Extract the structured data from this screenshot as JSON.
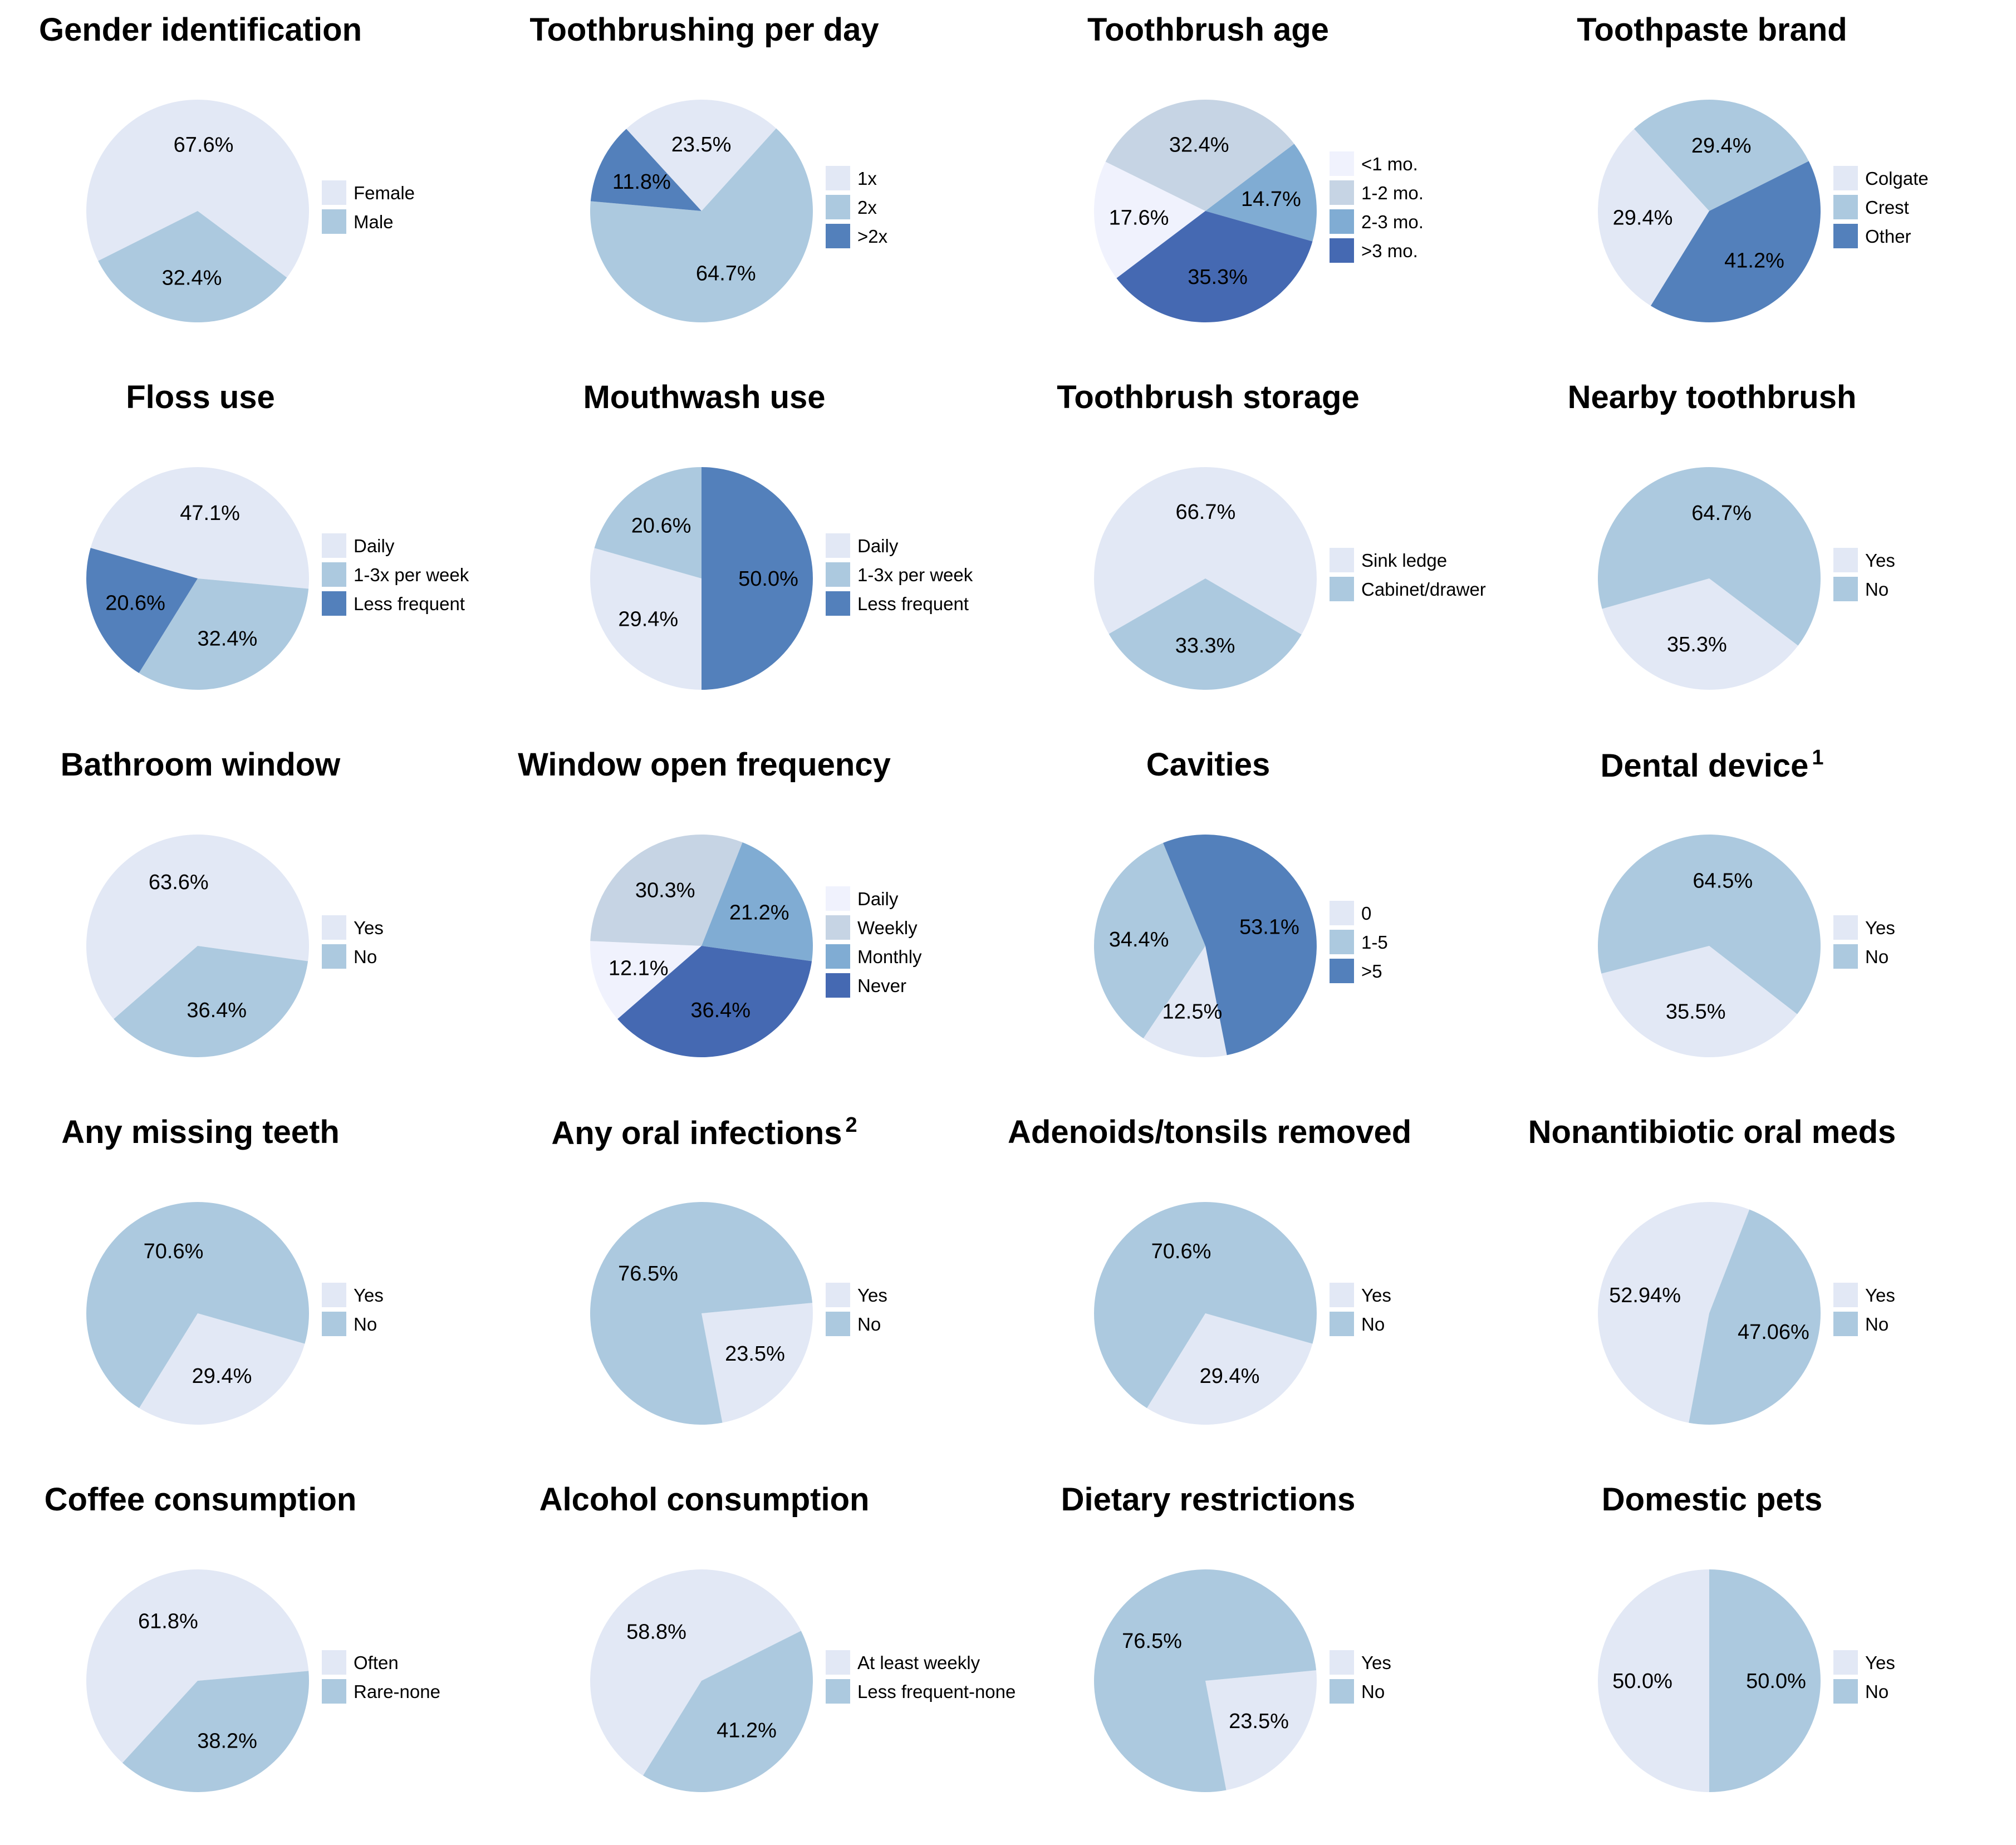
{
  "chart_data": [
    {
      "type": "pie",
      "title": "Gender identification",
      "sup": "",
      "categories": [
        "Female",
        "Male"
      ],
      "values": [
        67.6,
        32.4
      ],
      "labels": [
        "67.6%",
        "32.4%"
      ],
      "colors": [
        "#e2e8f5",
        "#acc9df"
      ]
    },
    {
      "type": "pie",
      "title": "Toothbrushing per day",
      "sup": "",
      "categories": [
        "1x",
        "2x",
        ">2x"
      ],
      "values": [
        23.5,
        64.7,
        11.8
      ],
      "labels": [
        "23.5%",
        "64.7%",
        "11.8%"
      ],
      "colors": [
        "#e2e8f5",
        "#acc9df",
        "#5380bb"
      ]
    },
    {
      "type": "pie",
      "title": "Toothbrush age",
      "sup": "",
      "categories": [
        "<1 mo.",
        "1-2 mo.",
        "2-3 mo.",
        ">3 mo."
      ],
      "values": [
        17.6,
        32.4,
        14.7,
        35.3
      ],
      "labels": [
        "17.6%",
        "32.4%",
        "14.7%",
        "35.3%"
      ],
      "colors": [
        "#f0f2fd",
        "#c6d4e4",
        "#80acd3",
        "#4569b2"
      ]
    },
    {
      "type": "pie",
      "title": "Toothpaste brand",
      "sup": "",
      "categories": [
        "Colgate",
        "Crest",
        "Other"
      ],
      "values": [
        29.4,
        29.4,
        41.2
      ],
      "labels": [
        "29.4%",
        "29.4%",
        "41.2%"
      ],
      "colors": [
        "#e2e8f5",
        "#acc9df",
        "#5380bb"
      ]
    },
    {
      "type": "pie",
      "title": "Floss use",
      "sup": "",
      "categories": [
        "Daily",
        "1-3x per week",
        "Less frequent"
      ],
      "values": [
        47.1,
        32.4,
        20.6
      ],
      "labels": [
        "47.1%",
        "32.4%",
        "20.6%"
      ],
      "colors": [
        "#e2e8f5",
        "#acc9df",
        "#5380bb"
      ]
    },
    {
      "type": "pie",
      "title": "Mouthwash use",
      "sup": "",
      "categories": [
        "Daily",
        "1-3x per week",
        "Less frequent"
      ],
      "values": [
        29.4,
        20.6,
        50.0
      ],
      "labels": [
        "29.4%",
        "20.6%",
        "50.0%"
      ],
      "colors": [
        "#e2e8f5",
        "#acc9df",
        "#5380bb"
      ]
    },
    {
      "type": "pie",
      "title": "Toothbrush storage",
      "sup": "",
      "categories": [
        "Sink ledge",
        "Cabinet/drawer"
      ],
      "values": [
        66.7,
        33.3
      ],
      "labels": [
        "66.7%",
        "33.3%"
      ],
      "colors": [
        "#e2e8f5",
        "#acc9df"
      ]
    },
    {
      "type": "pie",
      "title": "Nearby toothbrush",
      "sup": "",
      "categories": [
        "Yes",
        "No"
      ],
      "values": [
        35.3,
        64.7
      ],
      "labels": [
        "35.3%",
        "64.7%"
      ],
      "colors": [
        "#e2e8f5",
        "#acc9df"
      ]
    },
    {
      "type": "pie",
      "title": "Bathroom window",
      "sup": "",
      "categories": [
        "Yes",
        "No"
      ],
      "values": [
        63.6,
        36.4
      ],
      "labels": [
        "63.6%",
        "36.4%"
      ],
      "colors": [
        "#e2e8f5",
        "#acc9df"
      ]
    },
    {
      "type": "pie",
      "title": "Window open frequency",
      "sup": "",
      "categories": [
        "Daily",
        "Weekly",
        "Monthly",
        "Never"
      ],
      "values": [
        12.1,
        30.3,
        21.2,
        36.4
      ],
      "labels": [
        "12.1%",
        "30.3%",
        "21.2%",
        "36.4%"
      ],
      "colors": [
        "#f0f2fd",
        "#c6d4e4",
        "#80acd3",
        "#4569b2"
      ]
    },
    {
      "type": "pie",
      "title": "Cavities",
      "sup": "",
      "categories": [
        "0",
        "1-5",
        ">5"
      ],
      "values": [
        12.5,
        34.4,
        53.1
      ],
      "labels": [
        "12.5%",
        "34.4%",
        "53.1%"
      ],
      "colors": [
        "#e2e8f5",
        "#acc9df",
        "#5380bb"
      ]
    },
    {
      "type": "pie",
      "title": "Dental device",
      "sup": "1",
      "categories": [
        "Yes",
        "No"
      ],
      "values": [
        35.5,
        64.5
      ],
      "labels": [
        "35.5%",
        "64.5%"
      ],
      "colors": [
        "#e2e8f5",
        "#acc9df"
      ]
    },
    {
      "type": "pie",
      "title": "Any missing teeth",
      "sup": "",
      "categories": [
        "Yes",
        "No"
      ],
      "values": [
        29.4,
        70.6
      ],
      "labels": [
        "29.4%",
        "70.6%"
      ],
      "colors": [
        "#e2e8f5",
        "#acc9df"
      ]
    },
    {
      "type": "pie",
      "title": "Any oral infections",
      "sup": "2",
      "categories": [
        "Yes",
        "No"
      ],
      "values": [
        23.5,
        76.5
      ],
      "labels": [
        "23.5%",
        "76.5%"
      ],
      "colors": [
        "#e2e8f5",
        "#acc9df"
      ]
    },
    {
      "type": "pie",
      "title": "Adenoids/tonsils removed",
      "sup": "",
      "categories": [
        "Yes",
        "No"
      ],
      "values": [
        29.4,
        70.6
      ],
      "labels": [
        "29.4%",
        "70.6%"
      ],
      "colors": [
        "#e2e8f5",
        "#acc9df"
      ]
    },
    {
      "type": "pie",
      "title": "Nonantibiotic oral meds",
      "sup": "",
      "categories": [
        "Yes",
        "No"
      ],
      "values": [
        52.94,
        47.06
      ],
      "labels": [
        "52.94%",
        "47.06%"
      ],
      "colors": [
        "#e2e8f5",
        "#acc9df"
      ]
    },
    {
      "type": "pie",
      "title": "Coffee consumption",
      "sup": "",
      "categories": [
        "Often",
        "Rare-none"
      ],
      "values": [
        61.8,
        38.2
      ],
      "labels": [
        "61.8%",
        "38.2%"
      ],
      "colors": [
        "#e2e8f5",
        "#acc9df"
      ]
    },
    {
      "type": "pie",
      "title": "Alcohol consumption",
      "sup": "",
      "categories": [
        "At least weekly",
        "Less frequent-none"
      ],
      "values": [
        58.8,
        41.2
      ],
      "labels": [
        "58.8%",
        "41.2%"
      ],
      "colors": [
        "#e2e8f5",
        "#acc9df"
      ]
    },
    {
      "type": "pie",
      "title": "Dietary restrictions",
      "sup": "",
      "categories": [
        "Yes",
        "No"
      ],
      "values": [
        23.5,
        76.5
      ],
      "labels": [
        "23.5%",
        "76.5%"
      ],
      "colors": [
        "#e2e8f5",
        "#acc9df"
      ]
    },
    {
      "type": "pie",
      "title": "Domestic pets",
      "sup": "",
      "categories": [
        "Yes",
        "No"
      ],
      "values": [
        50.0,
        50.0
      ],
      "labels": [
        "50.0%",
        "50.0%"
      ],
      "colors": [
        "#e2e8f5",
        "#acc9df"
      ]
    }
  ]
}
